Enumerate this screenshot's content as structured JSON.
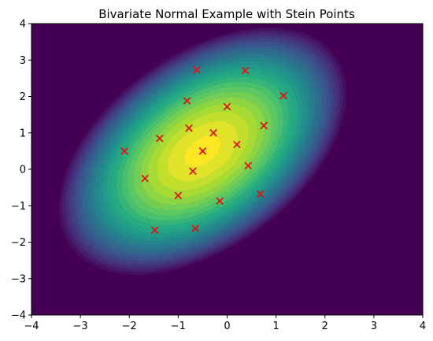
{
  "chart_data": {
    "type": "scatter",
    "title": "Bivariate Normal Example with Stein Points",
    "xlabel": "",
    "ylabel": "",
    "xlim": [
      -4,
      4
    ],
    "ylim": [
      -4,
      4
    ],
    "x_ticks": [
      "−4",
      "−3",
      "−2",
      "−1",
      "0",
      "1",
      "2",
      "3",
      "4"
    ],
    "y_ticks": [
      "−4",
      "−3",
      "−2",
      "−1",
      "0",
      "1",
      "2",
      "3",
      "4"
    ],
    "grid": false,
    "legend": "none",
    "background": {
      "type": "filled-contour",
      "description_values": {
        "mean": [
          -0.5,
          0.5
        ],
        "variance_x": 1.5,
        "variance_y": 2.0,
        "covariance": 0.8
      },
      "colormap": "viridis",
      "low_color": "#440154",
      "high_color": "#fde725"
    },
    "series": [
      {
        "marker": "x",
        "color": "#e01414",
        "x": [
          -0.62,
          0.37,
          -0.82,
          1.15,
          0.0,
          -0.78,
          0.75,
          -0.28,
          -1.38,
          0.2,
          -2.1,
          -0.5,
          0.43,
          -0.7,
          -1.68,
          -1.0,
          0.68,
          -0.15,
          -1.48,
          -0.65
        ],
        "y": [
          2.73,
          2.71,
          1.88,
          2.02,
          1.72,
          1.13,
          1.2,
          1.0,
          0.85,
          0.68,
          0.5,
          0.5,
          0.1,
          -0.05,
          -0.25,
          -0.72,
          -0.68,
          -0.87,
          -1.67,
          -1.62
        ]
      }
    ]
  }
}
